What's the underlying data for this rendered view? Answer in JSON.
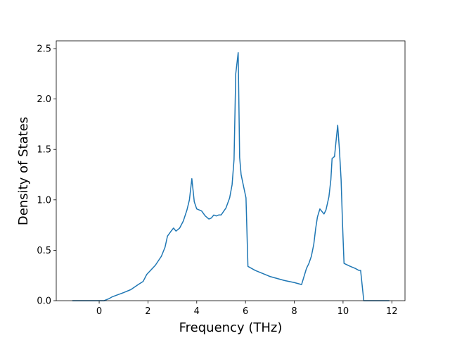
{
  "chart_data": {
    "type": "line",
    "xlabel": "Frequency (THz)",
    "ylabel": "Density of States",
    "x": [
      -1.1,
      0.2,
      0.4,
      0.55,
      1.0,
      1.3,
      1.6,
      1.8,
      1.95,
      2.3,
      2.55,
      2.7,
      2.8,
      2.95,
      3.05,
      3.15,
      3.3,
      3.45,
      3.6,
      3.7,
      3.8,
      3.9,
      4.0,
      4.2,
      4.35,
      4.5,
      4.6,
      4.7,
      4.8,
      4.9,
      5.0,
      5.2,
      5.35,
      5.45,
      5.53,
      5.6,
      5.7,
      5.76,
      5.82,
      5.95,
      6.02,
      6.1,
      6.4,
      7.0,
      7.6,
      8.0,
      8.3,
      8.4,
      8.5,
      8.6,
      8.7,
      8.8,
      8.88,
      8.95,
      9.05,
      9.15,
      9.22,
      9.3,
      9.42,
      9.5,
      9.55,
      9.65,
      9.72,
      9.78,
      9.85,
      9.92,
      9.98,
      10.04,
      10.3,
      10.5,
      10.65,
      10.72,
      10.85,
      11.9
    ],
    "series": [
      {
        "color": "#1f77b4",
        "values": [
          0,
          0,
          0.02,
          0.04,
          0.08,
          0.11,
          0.16,
          0.19,
          0.26,
          0.35,
          0.44,
          0.53,
          0.64,
          0.69,
          0.72,
          0.69,
          0.72,
          0.79,
          0.9,
          1.0,
          1.21,
          0.98,
          0.91,
          0.89,
          0.84,
          0.81,
          0.82,
          0.85,
          0.84,
          0.85,
          0.85,
          0.92,
          1.02,
          1.15,
          1.4,
          2.25,
          2.46,
          1.42,
          1.25,
          1.1,
          1.02,
          0.34,
          0.3,
          0.24,
          0.2,
          0.18,
          0.16,
          0.24,
          0.32,
          0.37,
          0.44,
          0.56,
          0.72,
          0.83,
          0.91,
          0.88,
          0.86,
          0.9,
          1.03,
          1.2,
          1.41,
          1.43,
          1.6,
          1.74,
          1.5,
          1.2,
          0.75,
          0.37,
          0.34,
          0.32,
          0.3,
          0.3,
          0,
          0
        ]
      }
    ],
    "xlim": [
      -1.76,
      12.54
    ],
    "ylim": [
      0,
      2.577
    ],
    "xticks": [
      0,
      2,
      4,
      6,
      8,
      10,
      12
    ],
    "yticks": [
      {
        "value": 0,
        "label": "0.0"
      },
      0.5,
      {
        "value": 1,
        "label": "1.0"
      },
      1.5,
      {
        "value": 2,
        "label": "2.0"
      },
      2.5
    ]
  }
}
